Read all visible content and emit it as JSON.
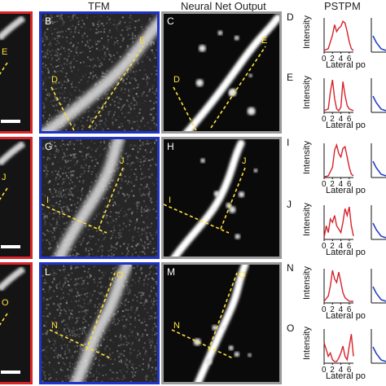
{
  "headers": {
    "tfm": "TFM",
    "nn": "Neural Net Output",
    "pstpm": "PSTPM"
  },
  "rows": [
    {
      "border_left": "#d9242a",
      "tfm": {
        "label": "B",
        "line1": "D",
        "line2": "E"
      },
      "nn": {
        "label": "C",
        "line1": "D",
        "line2": "E"
      }
    },
    {
      "border_left": "#d9242a",
      "tfm": {
        "label": "G",
        "line1": "I",
        "line2": "J"
      },
      "nn": {
        "label": "H",
        "line1": "I",
        "line2": "J"
      }
    },
    {
      "border_left": "#d9242a",
      "tfm": {
        "label": "L",
        "line1": "N",
        "line2": "O"
      },
      "nn": {
        "label": "M",
        "line1": "N",
        "line2": "O"
      }
    }
  ],
  "left_labels": [
    "E",
    "J",
    "O"
  ],
  "colors": {
    "red": "#d9242a",
    "blue": "#1f33c7",
    "gray": "#9a9a9a",
    "yellow": "#ffe13a",
    "trace": "#d6222a",
    "trace2": "#2340c8"
  },
  "plots": [
    {
      "letter": "D",
      "ylabel": "Intensity",
      "xticks": [
        "0",
        "2",
        "4",
        "6"
      ]
    },
    {
      "letter": "E",
      "ylabel": "Intensity",
      "xticks": [
        "0",
        "2",
        "4",
        "6"
      ]
    },
    {
      "letter": "I",
      "ylabel": "Intensity",
      "xticks": [
        "0",
        "2",
        "4",
        "6"
      ]
    },
    {
      "letter": "J",
      "ylabel": "Intensity",
      "xticks": [
        "0",
        "2",
        "4",
        "6"
      ]
    },
    {
      "letter": "N",
      "ylabel": "Intensity",
      "xticks": [
        "0",
        "2",
        "4",
        "6"
      ]
    },
    {
      "letter": "O",
      "ylabel": "Intensity",
      "xticks": [
        "0",
        "2",
        "4",
        "6"
      ]
    }
  ],
  "xaxis_label": "Lateral po",
  "chart_data": [
    {
      "type": "line",
      "letter": "D",
      "x": [
        0,
        1,
        2,
        2.5,
        3,
        3.5,
        4,
        4.5,
        5,
        5.5,
        6,
        6.5,
        7
      ],
      "values": [
        0.05,
        0.1,
        0.5,
        0.8,
        0.6,
        0.7,
        0.75,
        0.9,
        0.85,
        0.6,
        0.3,
        0.1,
        0.05
      ]
    },
    {
      "type": "line",
      "letter": "E",
      "x": [
        0,
        1,
        1.5,
        2,
        2.5,
        3,
        3.5,
        4,
        4.5,
        5,
        5.5,
        6,
        7
      ],
      "values": [
        0.05,
        0.1,
        0.6,
        0.95,
        0.4,
        0.1,
        0.05,
        0.15,
        0.9,
        0.5,
        0.2,
        0.1,
        0.05
      ]
    },
    {
      "type": "line",
      "letter": "I",
      "x": [
        0,
        1,
        2,
        2.5,
        3,
        3.5,
        4,
        4.5,
        5,
        5.5,
        6,
        6.5,
        7
      ],
      "values": [
        0.02,
        0.05,
        0.3,
        0.8,
        0.95,
        0.7,
        0.6,
        0.85,
        0.9,
        0.6,
        0.3,
        0.1,
        0.05
      ]
    },
    {
      "type": "line",
      "letter": "J",
      "x": [
        0,
        0.5,
        1,
        1.5,
        2,
        2.5,
        3,
        3.5,
        4,
        4.5,
        5,
        5.5,
        6,
        6.5,
        7
      ],
      "values": [
        0.05,
        0.4,
        0.2,
        0.6,
        0.5,
        0.7,
        0.4,
        0.3,
        0.2,
        0.5,
        0.9,
        0.7,
        0.95,
        0.4,
        0.1
      ]
    },
    {
      "type": "line",
      "letter": "N",
      "x": [
        0,
        1,
        1.5,
        2,
        2.5,
        3,
        3.5,
        4,
        4.5,
        5,
        5.5,
        6,
        7
      ],
      "values": [
        0.05,
        0.2,
        0.5,
        0.95,
        0.7,
        0.6,
        0.9,
        0.6,
        0.3,
        0.15,
        0.1,
        0.05,
        0.05
      ]
    },
    {
      "type": "line",
      "letter": "O",
      "x": [
        0,
        0.5,
        1,
        1.5,
        2,
        2.5,
        3,
        3.5,
        4,
        4.5,
        5,
        5.5,
        6,
        6.5,
        7
      ],
      "values": [
        0.6,
        0.4,
        0.2,
        0.3,
        0.1,
        0.05,
        0.05,
        0.15,
        0.3,
        0.5,
        0.2,
        0.1,
        0.5,
        0.85,
        0.2
      ]
    }
  ]
}
